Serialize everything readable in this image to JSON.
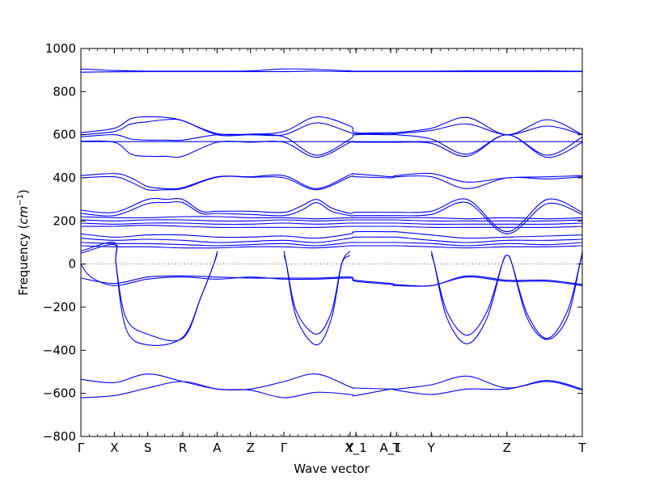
{
  "chart_data": {
    "type": "line",
    "title": "",
    "xlabel": "Wave vector",
    "ylabel": "Frequency ($cm^{-1}$)",
    "ylabel_parts": {
      "text": "Frequency (",
      "unit_base": "cm",
      "unit_exp": "−1",
      "close": ")"
    },
    "ylim": [
      -800,
      1000
    ],
    "yticks": [
      -800,
      -600,
      -400,
      -200,
      0,
      200,
      400,
      600,
      800,
      1000
    ],
    "xlim": [
      0,
      1
    ],
    "xticks": [
      {
        "label": "Γ",
        "x": 0.0
      },
      {
        "label": "X",
        "x": 0.0667
      },
      {
        "label": "S",
        "x": 0.1333
      },
      {
        "label": "R",
        "x": 0.2033
      },
      {
        "label": "A",
        "x": 0.2716
      },
      {
        "label": "Z",
        "x": 0.3383
      },
      {
        "label": "Γ",
        "x": 0.4049
      },
      {
        "label": "Y",
        "x": 0.5371
      },
      {
        "label": "X_1",
        "x": 0.5485
      },
      {
        "label": "A_1",
        "x": 0.6179
      },
      {
        "label": "T",
        "x": 0.6293
      },
      {
        "label": "Y",
        "x": 0.6988
      },
      {
        "label": "Z",
        "x": 0.8496
      },
      {
        "label": "T",
        "x": 1.0
      }
    ],
    "zero_line": true,
    "grid": false,
    "series_color": "#0000ff",
    "series": [
      {
        "x": [
          0,
          0.067,
          0.133,
          0.203,
          0.272,
          0.338,
          0.405,
          0.47,
          0.537,
          0.548,
          0.618,
          0.629,
          0.699,
          0.77,
          0.85,
          0.93,
          1.0
        ],
        "y": [
          890,
          892,
          893,
          893,
          893,
          893,
          893,
          895,
          893,
          893,
          893,
          893,
          893,
          893,
          893,
          893,
          893
        ]
      },
      {
        "x": [
          0,
          0.067,
          0.133,
          0.203,
          0.272,
          0.338,
          0.405,
          0.47,
          0.537,
          0.548,
          0.618,
          0.629,
          0.699,
          0.77,
          0.85,
          0.93,
          1.0
        ],
        "y": [
          905,
          898,
          895,
          895,
          895,
          896,
          905,
          903,
          896,
          895,
          895,
          895,
          895,
          896,
          896,
          896,
          895
        ]
      },
      {
        "x": [
          0,
          0.067,
          0.1,
          0.133,
          0.17,
          0.203,
          0.272,
          0.338,
          0.405,
          0.47,
          0.537,
          0.548,
          0.618,
          0.629,
          0.699,
          0.77,
          0.85,
          0.93,
          1.0
        ],
        "y": [
          610,
          630,
          675,
          683,
          680,
          665,
          605,
          603,
          615,
          683,
          640,
          610,
          610,
          610,
          630,
          680,
          600,
          670,
          600
        ]
      },
      {
        "x": [
          0,
          0.067,
          0.1,
          0.133,
          0.17,
          0.203,
          0.272,
          0.338,
          0.405,
          0.47,
          0.537,
          0.548,
          0.618,
          0.629,
          0.699,
          0.77,
          0.85,
          0.93,
          1.0
        ],
        "y": [
          600,
          615,
          650,
          660,
          670,
          665,
          600,
          600,
          600,
          655,
          610,
          605,
          605,
          605,
          620,
          650,
          600,
          640,
          600
        ]
      },
      {
        "x": [
          0,
          0.067,
          0.1,
          0.133,
          0.17,
          0.203,
          0.272,
          0.338,
          0.405,
          0.47,
          0.537,
          0.548,
          0.618,
          0.629,
          0.699,
          0.77,
          0.85,
          0.93,
          1.0
        ],
        "y": [
          590,
          600,
          580,
          575,
          575,
          575,
          600,
          600,
          590,
          505,
          580,
          600,
          600,
          600,
          580,
          510,
          600,
          505,
          590
        ]
      },
      {
        "x": [
          0,
          0.067,
          0.1,
          0.133,
          0.17,
          0.203,
          0.272,
          0.338,
          0.405,
          0.47,
          0.537,
          0.548,
          0.618,
          0.629,
          0.699,
          0.77,
          0.85,
          0.93,
          1.0
        ],
        "y": [
          570,
          565,
          510,
          500,
          500,
          500,
          565,
          565,
          565,
          495,
          565,
          565,
          565,
          565,
          560,
          500,
          600,
          495,
          565
        ]
      },
      {
        "x": [
          0,
          0.067,
          0.133,
          0.203,
          0.272,
          0.338,
          0.405,
          0.47,
          0.537,
          0.548,
          0.618,
          0.629,
          0.699,
          0.77,
          0.85,
          0.93,
          1.0
        ],
        "y": [
          568,
          568,
          568,
          568,
          568,
          568,
          568,
          568,
          568,
          568,
          568,
          568,
          568,
          568,
          568,
          568,
          568
        ]
      },
      {
        "x": [
          0,
          0.067,
          0.1,
          0.133,
          0.17,
          0.203,
          0.272,
          0.338,
          0.405,
          0.47,
          0.537,
          0.548,
          0.618,
          0.629,
          0.699,
          0.77,
          0.85,
          0.93,
          1.0
        ],
        "y": [
          410,
          420,
          400,
          360,
          350,
          355,
          405,
          405,
          410,
          350,
          415,
          418,
          405,
          410,
          420,
          380,
          400,
          405,
          410
        ]
      },
      {
        "x": [
          0,
          0.067,
          0.1,
          0.133,
          0.17,
          0.203,
          0.272,
          0.338,
          0.405,
          0.47,
          0.537,
          0.548,
          0.618,
          0.629,
          0.699,
          0.77,
          0.85,
          0.93,
          1.0
        ],
        "y": [
          400,
          405,
          380,
          345,
          345,
          350,
          403,
          403,
          400,
          345,
          405,
          405,
          400,
          405,
          405,
          350,
          400,
          395,
          405
        ]
      },
      {
        "x": [
          0,
          0.067,
          0.133,
          0.17,
          0.203,
          0.24,
          0.272,
          0.338,
          0.405,
          0.44,
          0.47,
          0.5,
          0.537,
          0.548,
          0.618,
          0.629,
          0.699,
          0.77,
          0.85,
          0.93,
          1.0
        ],
        "y": [
          250,
          240,
          300,
          300,
          300,
          245,
          245,
          245,
          240,
          270,
          300,
          260,
          235,
          240,
          240,
          240,
          245,
          300,
          150,
          300,
          240
        ]
      },
      {
        "x": [
          0,
          0.067,
          0.133,
          0.17,
          0.203,
          0.24,
          0.272,
          0.338,
          0.405,
          0.44,
          0.47,
          0.5,
          0.537,
          0.548,
          0.618,
          0.629,
          0.699,
          0.77,
          0.85,
          0.93,
          1.0
        ],
        "y": [
          235,
          225,
          280,
          285,
          285,
          235,
          235,
          230,
          225,
          250,
          285,
          245,
          225,
          225,
          225,
          225,
          230,
          285,
          140,
          280,
          230
        ]
      },
      {
        "x": [
          0,
          0.067,
          0.133,
          0.203,
          0.272,
          0.338,
          0.405,
          0.47,
          0.537,
          0.548,
          0.618,
          0.629,
          0.699,
          0.77,
          0.85,
          0.93,
          1.0
        ],
        "y": [
          220,
          215,
          215,
          220,
          220,
          215,
          215,
          210,
          215,
          215,
          215,
          215,
          215,
          210,
          215,
          210,
          215
        ]
      },
      {
        "x": [
          0,
          0.067,
          0.133,
          0.203,
          0.272,
          0.338,
          0.405,
          0.47,
          0.537,
          0.548,
          0.618,
          0.629,
          0.699,
          0.77,
          0.85,
          0.93,
          1.0
        ],
        "y": [
          205,
          200,
          205,
          205,
          200,
          200,
          205,
          200,
          205,
          205,
          205,
          205,
          200,
          200,
          200,
          200,
          205
        ]
      },
      {
        "x": [
          0,
          0.067,
          0.133,
          0.203,
          0.272,
          0.338,
          0.405,
          0.47,
          0.537,
          0.548,
          0.618,
          0.629,
          0.699,
          0.77,
          0.85,
          0.93,
          1.0
        ],
        "y": [
          190,
          185,
          190,
          190,
          185,
          185,
          190,
          185,
          190,
          190,
          190,
          190,
          185,
          185,
          185,
          185,
          190
        ]
      },
      {
        "x": [
          0,
          0.067,
          0.133,
          0.203,
          0.272,
          0.338,
          0.405,
          0.47,
          0.537,
          0.548,
          0.618,
          0.629,
          0.699,
          0.77,
          0.85,
          0.93,
          1.0
        ],
        "y": [
          175,
          175,
          180,
          175,
          170,
          170,
          170,
          170,
          175,
          175,
          175,
          175,
          170,
          170,
          170,
          170,
          175
        ]
      },
      {
        "x": [
          0,
          0.067,
          0.133,
          0.203,
          0.272,
          0.338,
          0.405,
          0.47,
          0.537,
          0.548,
          0.618,
          0.629,
          0.699,
          0.77,
          0.85,
          0.93,
          1.0
        ],
        "y": [
          140,
          125,
          135,
          135,
          125,
          125,
          130,
          120,
          140,
          150,
          150,
          150,
          135,
          120,
          125,
          130,
          135
        ]
      },
      {
        "x": [
          0,
          0.067,
          0.133,
          0.203,
          0.272,
          0.338,
          0.405,
          0.47,
          0.537,
          0.548,
          0.618,
          0.629,
          0.699,
          0.77,
          0.85,
          0.93,
          1.0
        ],
        "y": [
          120,
          110,
          115,
          110,
          100,
          105,
          110,
          100,
          120,
          125,
          125,
          125,
          110,
          100,
          110,
          110,
          115
        ]
      },
      {
        "x": [
          0,
          0.067,
          0.133,
          0.203,
          0.272,
          0.338,
          0.405,
          0.47,
          0.537,
          0.548,
          0.618,
          0.629,
          0.699,
          0.77,
          0.85,
          0.93,
          1.0
        ],
        "y": [
          100,
          95,
          95,
          90,
          85,
          90,
          95,
          85,
          100,
          100,
          100,
          100,
          95,
          85,
          95,
          90,
          100
        ]
      },
      {
        "x": [
          0,
          0.067,
          0.133,
          0.203,
          0.272,
          0.338,
          0.405,
          0.47,
          0.537,
          0.548,
          0.618,
          0.629,
          0.699,
          0.77,
          0.85,
          0.93,
          1.0
        ],
        "y": [
          85,
          80,
          80,
          75,
          75,
          80,
          80,
          75,
          85,
          85,
          85,
          85,
          80,
          75,
          80,
          80,
          85
        ]
      },
      {
        "x": [
          0,
          0.02,
          0.067,
          0.133,
          0.203,
          0.272,
          0.338,
          0.405,
          0.47,
          0.537,
          0.548,
          0.618,
          0.629,
          0.699,
          0.77,
          0.85,
          0.93,
          1.0
        ],
        "y": [
          0,
          -60,
          -100,
          -70,
          -60,
          -70,
          -60,
          -70,
          -70,
          -65,
          -80,
          -95,
          -100,
          -100,
          -60,
          -80,
          -80,
          -100
        ]
      },
      {
        "x": [
          0,
          0.067,
          0.133,
          0.203,
          0.272,
          0.338,
          0.405,
          0.47,
          0.537,
          0.548,
          0.618,
          0.629,
          0.699,
          0.77,
          0.85,
          0.93,
          1.0
        ],
        "y": [
          -65,
          -90,
          -60,
          -55,
          -60,
          -65,
          -65,
          -65,
          -60,
          -75,
          -90,
          -95,
          -100,
          -55,
          -75,
          -75,
          -95
        ]
      },
      {
        "x": [
          0,
          0.067,
          0.07,
          0.09,
          0.133,
          0.203,
          0.24,
          0.265,
          0.272
        ],
        "y": [
          60,
          100,
          0,
          -300,
          -375,
          -340,
          -150,
          0,
          60
        ]
      },
      {
        "x": [
          0,
          0.067,
          0.07,
          0.09,
          0.133,
          0.203,
          0.24,
          0.265,
          0.272
        ],
        "y": [
          50,
          90,
          0,
          -250,
          -325,
          -345,
          -150,
          0,
          50
        ]
      },
      {
        "x": [
          0.405,
          0.41,
          0.43,
          0.47,
          0.5,
          0.52,
          0.537
        ],
        "y": [
          60,
          0,
          -250,
          -375,
          -250,
          0,
          60
        ]
      },
      {
        "x": [
          0.405,
          0.41,
          0.43,
          0.47,
          0.5,
          0.52,
          0.537
        ],
        "y": [
          40,
          0,
          -220,
          -325,
          -220,
          0,
          40
        ]
      },
      {
        "x": [
          0.699,
          0.705,
          0.73,
          0.77,
          0.81,
          0.84,
          0.85,
          0.86,
          0.89,
          0.93,
          0.97,
          0.995,
          1.0
        ],
        "y": [
          60,
          0,
          -250,
          -370,
          -250,
          0,
          40,
          0,
          -250,
          -350,
          -250,
          0,
          60
        ]
      },
      {
        "x": [
          0.699,
          0.705,
          0.73,
          0.77,
          0.81,
          0.84,
          0.85,
          0.86,
          0.89,
          0.93,
          0.97,
          0.995,
          1.0
        ],
        "y": [
          45,
          0,
          -220,
          -330,
          -220,
          0,
          40,
          0,
          -230,
          -345,
          -220,
          0,
          45
        ]
      },
      {
        "x": [
          0,
          0.067,
          0.133,
          0.203,
          0.272,
          0.338,
          0.405,
          0.47,
          0.537,
          0.548,
          0.618,
          0.629,
          0.699,
          0.77,
          0.85,
          0.93,
          1.0
        ],
        "y": [
          -535,
          -550,
          -510,
          -545,
          -580,
          -580,
          -545,
          -510,
          -570,
          -575,
          -580,
          -580,
          -560,
          -520,
          -575,
          -540,
          -580
        ]
      },
      {
        "x": [
          0,
          0.067,
          0.133,
          0.203,
          0.272,
          0.338,
          0.405,
          0.47,
          0.537,
          0.548,
          0.618,
          0.629,
          0.699,
          0.77,
          0.85,
          0.93,
          1.0
        ],
        "y": [
          -620,
          -610,
          -575,
          -545,
          -580,
          -585,
          -620,
          -595,
          -605,
          -610,
          -580,
          -585,
          -605,
          -580,
          -580,
          -545,
          -585
        ]
      }
    ]
  }
}
